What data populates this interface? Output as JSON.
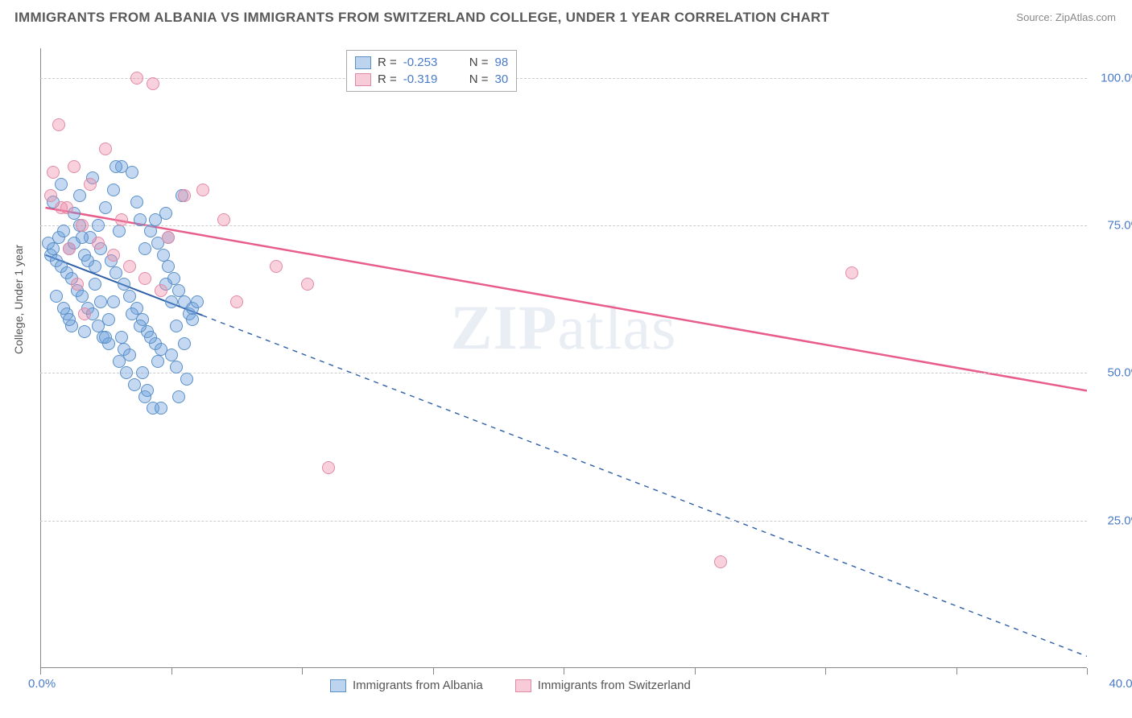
{
  "title": "IMMIGRANTS FROM ALBANIA VS IMMIGRANTS FROM SWITZERLAND COLLEGE, UNDER 1 YEAR CORRELATION CHART",
  "source_label": "Source:",
  "source_name": "ZipAtlas.com",
  "ylabel": "College, Under 1 year",
  "watermark_a": "ZIP",
  "watermark_b": "atlas",
  "chart": {
    "type": "scatter",
    "xlim": [
      0,
      40
    ],
    "ylim": [
      0,
      105
    ],
    "xticks": [
      0,
      5,
      10,
      15,
      20,
      25,
      30,
      35,
      40
    ],
    "xtick_labels": {
      "first": "0.0%",
      "last": "40.0%"
    },
    "yticks": [
      25,
      50,
      75,
      100
    ],
    "ytick_labels": [
      "25.0%",
      "50.0%",
      "75.0%",
      "100.0%"
    ],
    "grid_color": "#cccccc",
    "background_color": "#ffffff",
    "series": [
      {
        "name": "Immigrants from Albania",
        "color_fill": "rgba(108,160,220,0.40)",
        "color_stroke": "#5a8fc8",
        "R": "-0.253",
        "N": "98",
        "marker_radius": 8,
        "trend": {
          "x1": 0.2,
          "y1": 70,
          "x2": 40,
          "y2": 2,
          "solid_until_x": 6.2,
          "color": "#2f5fa8",
          "width": 2
        },
        "points": [
          [
            0.3,
            72
          ],
          [
            0.4,
            70
          ],
          [
            0.5,
            71
          ],
          [
            0.6,
            69
          ],
          [
            0.7,
            73
          ],
          [
            0.8,
            68
          ],
          [
            0.9,
            74
          ],
          [
            1.0,
            67
          ],
          [
            1.1,
            71
          ],
          [
            1.2,
            66
          ],
          [
            1.3,
            72
          ],
          [
            1.4,
            64
          ],
          [
            1.5,
            75
          ],
          [
            1.6,
            63
          ],
          [
            1.7,
            70
          ],
          [
            1.8,
            61
          ],
          [
            1.9,
            73
          ],
          [
            2.0,
            60
          ],
          [
            2.1,
            68
          ],
          [
            2.2,
            58
          ],
          [
            2.3,
            71
          ],
          [
            2.4,
            56
          ],
          [
            2.5,
            78
          ],
          [
            2.6,
            55
          ],
          [
            2.7,
            69
          ],
          [
            2.8,
            81
          ],
          [
            2.9,
            67
          ],
          [
            3.0,
            52
          ],
          [
            3.1,
            85
          ],
          [
            3.2,
            65
          ],
          [
            3.3,
            50
          ],
          [
            3.4,
            63
          ],
          [
            3.5,
            84
          ],
          [
            3.6,
            48
          ],
          [
            3.7,
            61
          ],
          [
            3.8,
            76
          ],
          [
            3.9,
            59
          ],
          [
            4.0,
            46
          ],
          [
            4.1,
            57
          ],
          [
            4.2,
            74
          ],
          [
            4.3,
            44
          ],
          [
            4.4,
            55
          ],
          [
            4.5,
            72
          ],
          [
            4.6,
            54
          ],
          [
            4.7,
            70
          ],
          [
            4.8,
            77
          ],
          [
            4.9,
            68
          ],
          [
            5.0,
            53
          ],
          [
            5.1,
            66
          ],
          [
            5.2,
            51
          ],
          [
            5.3,
            64
          ],
          [
            5.4,
            80
          ],
          [
            5.5,
            62
          ],
          [
            5.6,
            49
          ],
          [
            5.7,
            60
          ],
          [
            5.8,
            59
          ],
          [
            0.5,
            79
          ],
          [
            0.8,
            82
          ],
          [
            1.0,
            60
          ],
          [
            1.2,
            58
          ],
          [
            1.5,
            80
          ],
          [
            1.7,
            57
          ],
          [
            2.0,
            83
          ],
          [
            2.2,
            75
          ],
          [
            2.5,
            56
          ],
          [
            2.8,
            62
          ],
          [
            3.0,
            74
          ],
          [
            3.2,
            54
          ],
          [
            3.5,
            60
          ],
          [
            3.8,
            58
          ],
          [
            4.0,
            71
          ],
          [
            4.2,
            56
          ],
          [
            4.5,
            52
          ],
          [
            4.8,
            65
          ],
          [
            5.0,
            62
          ],
          [
            5.2,
            58
          ],
          [
            5.5,
            55
          ],
          [
            5.8,
            61
          ],
          [
            6.0,
            62
          ],
          [
            0.6,
            63
          ],
          [
            0.9,
            61
          ],
          [
            1.1,
            59
          ],
          [
            1.3,
            77
          ],
          [
            1.6,
            73
          ],
          [
            1.8,
            69
          ],
          [
            2.1,
            65
          ],
          [
            2.3,
            62
          ],
          [
            2.6,
            59
          ],
          [
            2.9,
            85
          ],
          [
            3.1,
            56
          ],
          [
            3.4,
            53
          ],
          [
            3.7,
            79
          ],
          [
            3.9,
            50
          ],
          [
            4.1,
            47
          ],
          [
            4.4,
            76
          ],
          [
            4.6,
            44
          ],
          [
            4.9,
            73
          ],
          [
            5.3,
            46
          ]
        ]
      },
      {
        "name": "Immigrants from Switzerland",
        "color_fill": "rgba(240,140,170,0.40)",
        "color_stroke": "#e08aa8",
        "R": "-0.319",
        "N": "30",
        "marker_radius": 8,
        "trend": {
          "x1": 0.2,
          "y1": 78,
          "x2": 40,
          "y2": 47,
          "solid_until_x": 40,
          "color": "#e85d8a",
          "width": 2.5
        },
        "points": [
          [
            0.4,
            80
          ],
          [
            0.7,
            92
          ],
          [
            1.0,
            78
          ],
          [
            1.3,
            85
          ],
          [
            1.6,
            75
          ],
          [
            1.9,
            82
          ],
          [
            2.2,
            72
          ],
          [
            2.5,
            88
          ],
          [
            2.8,
            70
          ],
          [
            3.1,
            76
          ],
          [
            3.4,
            68
          ],
          [
            3.7,
            100
          ],
          [
            4.0,
            66
          ],
          [
            4.3,
            99
          ],
          [
            4.6,
            64
          ],
          [
            4.9,
            73
          ],
          [
            5.5,
            80
          ],
          [
            6.2,
            81
          ],
          [
            7.0,
            76
          ],
          [
            7.5,
            62
          ],
          [
            9.0,
            68
          ],
          [
            10.2,
            65
          ],
          [
            11.0,
            34
          ],
          [
            26.0,
            18
          ],
          [
            31.0,
            67
          ],
          [
            0.5,
            84
          ],
          [
            0.8,
            78
          ],
          [
            1.1,
            71
          ],
          [
            1.4,
            65
          ],
          [
            1.7,
            60
          ]
        ]
      }
    ],
    "bottom_legend": [
      {
        "label": "Immigrants from Albania",
        "swatch": "blue"
      },
      {
        "label": "Immigrants from Switzerland",
        "swatch": "pink"
      }
    ]
  }
}
